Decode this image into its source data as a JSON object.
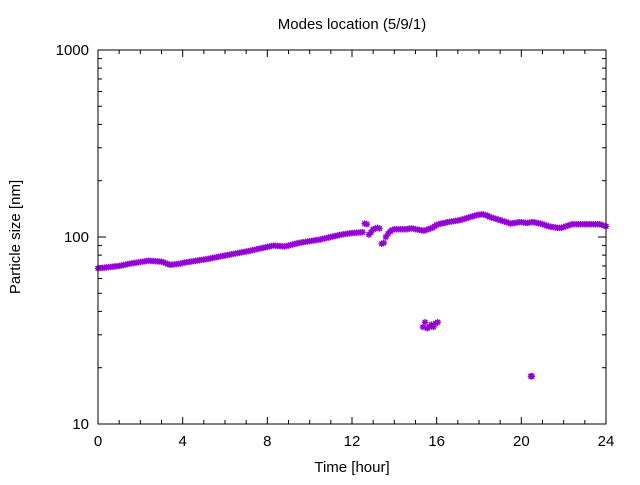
{
  "chart_data": {
    "type": "scatter",
    "title": "Modes location (5/9/1)",
    "xlabel": "Time [hour]",
    "ylabel": "Particle size [nm]",
    "xlim": [
      0,
      24
    ],
    "ylim": [
      10,
      1000
    ],
    "yscale": "log",
    "x_ticks": [
      0,
      4,
      8,
      12,
      16,
      20,
      24
    ],
    "x_tick_labels": [
      "0",
      "4",
      "8",
      "12",
      "16",
      "20",
      "24"
    ],
    "y_ticks": [
      10,
      100,
      1000
    ],
    "y_tick_labels": [
      "10",
      "100",
      "1000"
    ],
    "grid": false,
    "legend": "none",
    "marker_color": "#9400d3",
    "series": [
      {
        "x": [
          0.0,
          0.1,
          0.2,
          0.3,
          0.4,
          0.5,
          0.6,
          0.7,
          0.8,
          0.9,
          1.0,
          1.1,
          1.2,
          1.3,
          1.4,
          1.5,
          1.6,
          1.7,
          1.8,
          1.9,
          2.0,
          2.1,
          2.2,
          2.3,
          2.4,
          2.5,
          2.6,
          2.7,
          2.8,
          2.9,
          3.0,
          3.1,
          3.2,
          3.3,
          3.4,
          3.5,
          3.6,
          3.7,
          3.8,
          3.9,
          4.0,
          4.1,
          4.2,
          4.3,
          4.4,
          4.5,
          4.6,
          4.7,
          4.8,
          4.9,
          5.0,
          5.1,
          5.2,
          5.3,
          5.4,
          5.5,
          5.6,
          5.7,
          5.8,
          5.9,
          6.0,
          6.1,
          6.2,
          6.3,
          6.4,
          6.5,
          6.6,
          6.7,
          6.8,
          6.9,
          7.0,
          7.1,
          7.2,
          7.3,
          7.4,
          7.5,
          7.6,
          7.7,
          7.8,
          7.9,
          8.0,
          8.1,
          8.2,
          8.3,
          8.4,
          8.5,
          8.6,
          8.7,
          8.8,
          8.9,
          9.0,
          9.1,
          9.2,
          9.3,
          9.4,
          9.5,
          9.6,
          9.7,
          9.8,
          9.9,
          10.0,
          10.1,
          10.2,
          10.3,
          10.4,
          10.5,
          10.6,
          10.7,
          10.8,
          10.9,
          11.0,
          11.1,
          11.2,
          11.3,
          11.4,
          11.5,
          11.6,
          11.7,
          11.8,
          11.9,
          12.0,
          12.1,
          12.2,
          12.3,
          12.4,
          12.5,
          12.6,
          12.7,
          12.8,
          12.9,
          13.0,
          13.1,
          13.2,
          13.3,
          13.4,
          13.5,
          13.6,
          13.7,
          13.8,
          13.9,
          14.0,
          14.1,
          14.2,
          14.3,
          14.4,
          14.5,
          14.6,
          14.7,
          14.8,
          14.9,
          15.0,
          15.1,
          15.2,
          15.3,
          15.4,
          15.5,
          15.6,
          15.7,
          15.8,
          15.9,
          16.0,
          16.1,
          16.2,
          16.3,
          16.4,
          16.5,
          16.6,
          16.7,
          16.8,
          16.9,
          17.0,
          17.1,
          17.2,
          17.3,
          17.4,
          17.5,
          17.6,
          17.7,
          17.8,
          17.9,
          18.0,
          18.1,
          18.2,
          18.3,
          18.4,
          18.5,
          18.6,
          18.7,
          18.8,
          18.9,
          19.0,
          19.1,
          19.2,
          19.3,
          19.4,
          19.5,
          19.6,
          19.7,
          19.8,
          19.9,
          20.0,
          20.1,
          20.2,
          20.3,
          20.4,
          20.5,
          20.6,
          20.7,
          20.8,
          20.9,
          21.0,
          21.1,
          21.2,
          21.3,
          21.4,
          21.5,
          21.6,
          21.7,
          21.8,
          21.9,
          22.0,
          22.1,
          22.2,
          22.3,
          22.4,
          22.5,
          22.6,
          22.7,
          22.8,
          22.9,
          23.0,
          23.1,
          23.2,
          23.3,
          23.4,
          23.5,
          23.6,
          23.7,
          23.8,
          23.9,
          24.0,
          15.35,
          15.45,
          15.55,
          15.65,
          15.75,
          15.85,
          15.95,
          16.05,
          20.45,
          20.5
        ],
        "y": [
          68.0,
          68.2,
          68.4,
          68.6,
          68.8,
          69.0,
          69.2,
          69.4,
          69.6,
          69.8,
          70.0,
          70.4,
          70.8,
          71.2,
          71.6,
          72.0,
          72.3,
          72.6,
          72.9,
          73.2,
          73.5,
          73.8,
          74.1,
          74.4,
          74.7,
          74.5,
          74.4,
          74.2,
          74.1,
          73.9,
          73.8,
          73.1,
          72.4,
          71.7,
          71.0,
          71.2,
          71.4,
          71.6,
          71.8,
          72.0,
          72.7,
          73.0,
          73.3,
          73.6,
          73.9,
          74.2,
          74.5,
          74.8,
          75.1,
          75.4,
          75.7,
          76.0,
          76.4,
          76.8,
          77.2,
          77.6,
          78.0,
          78.4,
          78.8,
          79.2,
          79.6,
          80.0,
          80.4,
          80.8,
          81.2,
          81.6,
          82.0,
          82.4,
          82.8,
          83.2,
          83.6,
          84.0,
          84.5,
          85.0,
          85.5,
          86.0,
          86.5,
          87.0,
          87.5,
          88.0,
          88.5,
          89.0,
          89.5,
          90.0,
          89.8,
          89.6,
          89.4,
          89.2,
          89.0,
          89.5,
          90.0,
          90.6,
          91.2,
          91.8,
          92.4,
          93.0,
          93.4,
          93.8,
          94.2,
          94.6,
          95.0,
          95.4,
          95.8,
          96.2,
          96.6,
          97.0,
          97.6,
          98.2,
          98.8,
          99.4,
          100.0,
          100.6,
          101.2,
          101.8,
          102.4,
          103.0,
          103.4,
          103.8,
          104.2,
          104.6,
          105.0,
          105.2,
          105.4,
          105.6,
          105.8,
          106.0,
          118.0,
          117.0,
          103.0,
          106.0,
          110.0,
          111.0,
          112.0,
          111.0,
          92.0,
          93.0,
          100.0,
          104.0,
          107.0,
          109.0,
          110.0,
          110.0,
          110.0,
          110.0,
          110.0,
          110.0,
          110.0,
          111.0,
          111.0,
          111.0,
          110.0,
          109.5,
          109.0,
          108.5,
          108.0,
          109.0,
          110.0,
          111.0,
          112.0,
          114.0,
          116.0,
          117.0,
          118.0,
          118.5,
          119.0,
          120.0,
          120.5,
          121.0,
          121.5,
          122.0,
          122.5,
          123.0,
          124.0,
          125.0,
          126.0,
          127.0,
          128.0,
          129.0,
          130.0,
          131.0,
          131.5,
          132.0,
          132.0,
          131.0,
          130.0,
          128.0,
          127.0,
          126.0,
          125.0,
          124.0,
          123.0,
          122.0,
          121.0,
          120.0,
          119.0,
          118.0,
          118.5,
          119.0,
          119.5,
          120.0,
          120.0,
          119.5,
          119.0,
          119.0,
          119.5,
          120.0,
          120.0,
          119.0,
          118.5,
          118.0,
          117.0,
          116.0,
          115.0,
          114.0,
          113.5,
          113.0,
          112.5,
          112.0,
          112.0,
          112.0,
          113.0,
          114.0,
          115.0,
          116.0,
          117.0,
          117.0,
          117.0,
          117.0,
          117.0,
          117.0,
          117.0,
          117.0,
          117.0,
          117.0,
          117.0,
          117.0,
          117.0,
          117.0,
          116.0,
          115.0,
          114.0,
          33.0,
          35.0,
          32.5,
          33.0,
          34.0,
          33.0,
          34.5,
          35.0,
          18.0,
          18.0
        ]
      }
    ]
  }
}
